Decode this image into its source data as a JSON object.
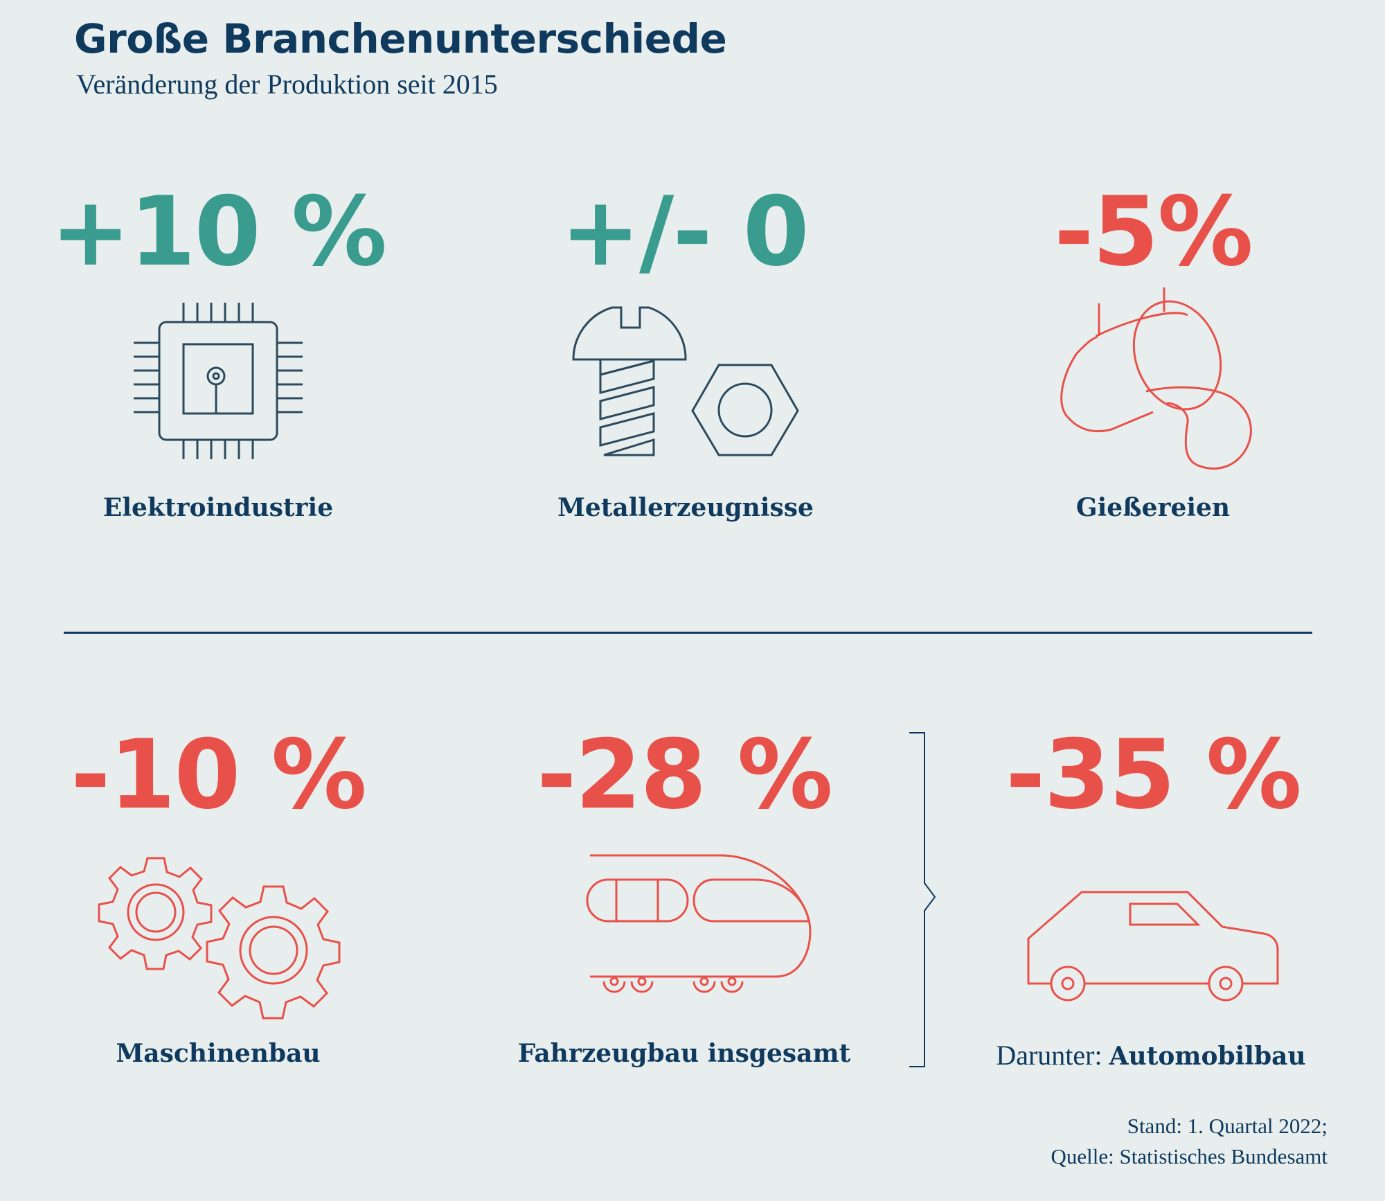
{
  "header": {
    "title": "Große Branchenunterschiede",
    "subtitle": "Veränderung der Produktion seit 2015"
  },
  "colors": {
    "positive": "#3a9b8f",
    "negative": "#e8514a",
    "text": "#0f3a5e",
    "background": "#e8eeee"
  },
  "items": [
    {
      "value": "+10 %",
      "label": "Elektroindustrie",
      "icon": "microchip-icon",
      "trend": "positive"
    },
    {
      "value": "+/- 0",
      "label": "Metallerzeugnisse",
      "icon": "screw-and-nut-icon",
      "trend": "positive"
    },
    {
      "value": "-5%",
      "label": "Gießereien",
      "icon": "foundry-ladle-icon",
      "trend": "negative"
    },
    {
      "value": "-10 %",
      "label": "Maschinenbau",
      "icon": "gears-icon",
      "trend": "negative"
    },
    {
      "value": "-28 %",
      "label": "Fahrzeugbau insgesamt",
      "icon": "train-icon",
      "trend": "negative"
    },
    {
      "value": "-35 %",
      "label_prefix": "Darunter: ",
      "label": "Automobilbau",
      "icon": "car-icon",
      "trend": "negative"
    }
  ],
  "footnote": {
    "line1": "Stand: 1. Quartal 2022;",
    "line2": "Quelle: Statistisches Bundesamt"
  }
}
